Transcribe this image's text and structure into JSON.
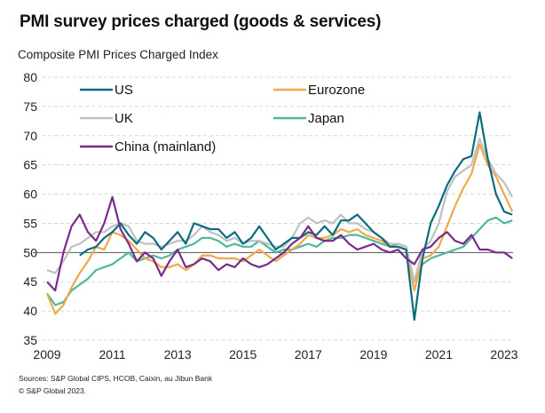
{
  "chart_data": {
    "type": "line",
    "title": "PMI survey prices charged (goods & services)",
    "subtitle": "Composite PMI Prices Charged Index",
    "xlabel": "",
    "ylabel": "Composite PMI Prices Charged Index",
    "ylim": [
      35,
      80
    ],
    "yticks": [
      35,
      40,
      45,
      50,
      55,
      60,
      65,
      70,
      75,
      80
    ],
    "xlim": [
      2009,
      2023.3
    ],
    "xticks": [
      "2009",
      "2011",
      "2013",
      "2015",
      "2017",
      "2019",
      "2021",
      "2023"
    ],
    "grid": true,
    "reference_line": 50,
    "legend_position": "top",
    "x_frequency": "quarterly",
    "x": [
      2009.0,
      2009.25,
      2009.5,
      2009.75,
      2010.0,
      2010.25,
      2010.5,
      2010.75,
      2011.0,
      2011.25,
      2011.5,
      2011.75,
      2012.0,
      2012.25,
      2012.5,
      2012.75,
      2013.0,
      2013.25,
      2013.5,
      2013.75,
      2014.0,
      2014.25,
      2014.5,
      2014.75,
      2015.0,
      2015.25,
      2015.5,
      2015.75,
      2016.0,
      2016.25,
      2016.5,
      2016.75,
      2017.0,
      2017.25,
      2017.5,
      2017.75,
      2018.0,
      2018.25,
      2018.5,
      2018.75,
      2019.0,
      2019.25,
      2019.5,
      2019.75,
      2020.0,
      2020.25,
      2020.5,
      2020.75,
      2021.0,
      2021.25,
      2021.5,
      2021.75,
      2022.0,
      2022.25,
      2022.5,
      2022.75,
      2023.0,
      2023.25
    ],
    "series": [
      {
        "name": "US",
        "color": "#0b6b80",
        "values": [
          null,
          null,
          null,
          null,
          49.5,
          50.5,
          51.0,
          52.5,
          53.5,
          55.0,
          53.0,
          51.5,
          53.5,
          52.5,
          50.5,
          52.0,
          53.5,
          51.5,
          55.0,
          54.5,
          54.0,
          54.0,
          52.5,
          53.5,
          51.5,
          52.5,
          54.5,
          52.5,
          50.5,
          51.5,
          52.5,
          52.5,
          53.5,
          53.0,
          54.5,
          53.0,
          55.5,
          55.5,
          56.5,
          55.0,
          53.5,
          52.5,
          51.0,
          51.0,
          50.5,
          38.5,
          49.0,
          55.0,
          58.0,
          61.5,
          64.0,
          66.0,
          66.5,
          74.0,
          66.0,
          60.0,
          57.0,
          56.5
        ]
      },
      {
        "name": "Eurozone",
        "color": "#f0a848",
        "values": [
          43.0,
          39.5,
          41.0,
          44.0,
          46.5,
          48.5,
          51.0,
          50.5,
          53.5,
          53.0,
          52.0,
          50.5,
          49.0,
          48.5,
          47.5,
          47.5,
          48.0,
          47.0,
          48.0,
          49.5,
          49.5,
          49.0,
          49.0,
          49.0,
          48.5,
          49.5,
          50.5,
          49.5,
          48.5,
          49.5,
          50.5,
          51.5,
          53.0,
          52.5,
          52.5,
          53.0,
          54.0,
          53.5,
          54.0,
          53.0,
          52.5,
          52.0,
          51.0,
          51.0,
          50.5,
          43.5,
          49.0,
          49.5,
          51.0,
          54.5,
          58.0,
          61.0,
          63.5,
          68.5,
          65.0,
          63.0,
          60.0,
          57.0
        ]
      },
      {
        "name": "UK",
        "color": "#c0c0c0",
        "values": [
          47.0,
          46.5,
          48.5,
          51.0,
          51.5,
          52.5,
          53.5,
          53.5,
          54.5,
          55.0,
          54.5,
          52.0,
          51.5,
          51.5,
          51.0,
          51.5,
          52.0,
          52.0,
          53.0,
          54.5,
          53.5,
          53.0,
          52.0,
          52.5,
          51.5,
          52.0,
          52.0,
          51.5,
          51.0,
          51.0,
          52.5,
          55.0,
          56.0,
          55.0,
          55.5,
          55.0,
          56.5,
          55.0,
          55.0,
          54.0,
          53.5,
          52.5,
          51.5,
          51.5,
          51.0,
          45.0,
          50.5,
          52.0,
          55.0,
          60.5,
          63.0,
          64.0,
          65.0,
          69.5,
          66.0,
          63.5,
          62.0,
          59.5
        ]
      },
      {
        "name": "Japan",
        "color": "#4db89a",
        "values": [
          43.0,
          41.0,
          41.5,
          43.5,
          44.5,
          45.5,
          47.0,
          47.5,
          48.0,
          49.0,
          50.0,
          48.5,
          49.0,
          49.5,
          49.0,
          49.5,
          50.5,
          51.0,
          51.5,
          52.5,
          52.5,
          52.0,
          51.0,
          51.5,
          51.0,
          51.0,
          52.0,
          51.0,
          50.0,
          50.5,
          50.5,
          51.0,
          51.5,
          51.0,
          52.0,
          52.5,
          52.5,
          53.0,
          53.0,
          52.5,
          52.0,
          51.5,
          51.0,
          51.5,
          51.0,
          45.0,
          48.0,
          49.0,
          49.5,
          50.0,
          50.5,
          51.0,
          52.5,
          54.0,
          55.5,
          56.0,
          55.0,
          55.5
        ]
      },
      {
        "name": "China (mainland)",
        "color": "#7a2a8a",
        "values": [
          45.0,
          43.5,
          50.0,
          54.5,
          56.5,
          53.5,
          52.0,
          55.0,
          59.5,
          54.0,
          51.5,
          48.5,
          50.0,
          49.0,
          46.0,
          48.5,
          50.5,
          47.5,
          48.0,
          49.0,
          48.5,
          47.0,
          48.0,
          47.5,
          49.0,
          48.0,
          47.5,
          48.0,
          49.0,
          50.0,
          51.5,
          52.5,
          54.5,
          52.5,
          52.0,
          52.0,
          53.0,
          51.5,
          50.5,
          51.0,
          51.5,
          50.5,
          50.0,
          50.5,
          49.0,
          48.0,
          50.5,
          51.0,
          52.5,
          53.5,
          52.0,
          51.5,
          53.0,
          50.5,
          50.5,
          50.0,
          50.0,
          49.0
        ]
      }
    ]
  },
  "footer": {
    "sources": "Sources:  S&P Global CIPS, HCOB,  Caixin, au Jibun Bank",
    "copyright": "© S&P Global 2023."
  }
}
